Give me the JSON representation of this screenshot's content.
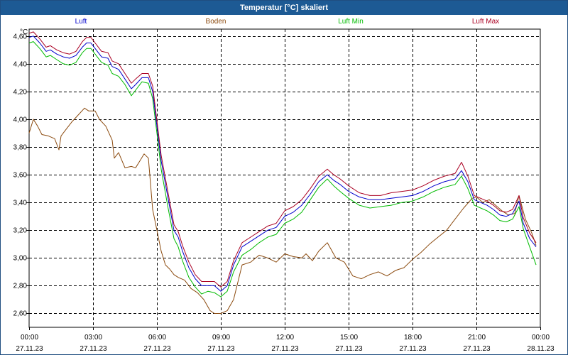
{
  "window": {
    "title": "Temperatur [°C] skaliert"
  },
  "chart_data": {
    "type": "line",
    "title": "Temperatur [°C] skaliert",
    "ylabel": "°C",
    "ylim": [
      2.5,
      4.65
    ],
    "xlim_hours": [
      0,
      24
    ],
    "grid": true,
    "legend": "top",
    "y_ticks": [
      "2,60",
      "2,80",
      "3,00",
      "3,20",
      "3,40",
      "3,60",
      "3,80",
      "4,00",
      "4,20",
      "4,40",
      "4,60"
    ],
    "x_ticks": [
      {
        "time": "00:00",
        "date": "27.11.23"
      },
      {
        "time": "03:00",
        "date": "27.11.23"
      },
      {
        "time": "06:00",
        "date": "27.11.23"
      },
      {
        "time": "09:00",
        "date": "27.11.23"
      },
      {
        "time": "12:00",
        "date": "27.11.23"
      },
      {
        "time": "15:00",
        "date": "27.11.23"
      },
      {
        "time": "18:00",
        "date": "27.11.23"
      },
      {
        "time": "21:00",
        "date": "27.11.23"
      },
      {
        "time": "00:00",
        "date": "28.11.23"
      }
    ],
    "series": [
      {
        "name": "Luft",
        "color": "#0000cc",
        "x": [
          0,
          0.2,
          0.5,
          0.8,
          1.0,
          1.3,
          1.6,
          1.9,
          2.2,
          2.5,
          2.7,
          2.9,
          3.1,
          3.4,
          3.7,
          3.9,
          4.2,
          4.5,
          4.8,
          5.0,
          5.3,
          5.6,
          5.8,
          6.0,
          6.2,
          6.5,
          6.8,
          7.0,
          7.2,
          7.5,
          7.8,
          8.1,
          8.4,
          8.7,
          9.0,
          9.3,
          9.6,
          10.0,
          10.4,
          10.8,
          11.2,
          11.6,
          12.0,
          12.4,
          12.8,
          13.2,
          13.6,
          14.0,
          14.3,
          14.6,
          15.0,
          15.5,
          16.0,
          16.5,
          17.0,
          17.5,
          18.0,
          18.5,
          19.0,
          19.5,
          20.0,
          20.3,
          20.6,
          20.9,
          21.2,
          21.5,
          21.8,
          22.1,
          22.4,
          22.7,
          23.0,
          23.2,
          23.5,
          23.8
        ],
        "values": [
          4.59,
          4.6,
          4.55,
          4.49,
          4.5,
          4.47,
          4.45,
          4.44,
          4.46,
          4.52,
          4.55,
          4.55,
          4.51,
          4.45,
          4.44,
          4.38,
          4.36,
          4.29,
          4.22,
          4.25,
          4.3,
          4.3,
          4.2,
          3.95,
          3.7,
          3.45,
          3.2,
          3.15,
          3.05,
          2.93,
          2.85,
          2.8,
          2.8,
          2.8,
          2.76,
          2.8,
          2.95,
          3.08,
          3.12,
          3.16,
          3.2,
          3.22,
          3.3,
          3.33,
          3.38,
          3.46,
          3.55,
          3.6,
          3.56,
          3.53,
          3.48,
          3.44,
          3.42,
          3.42,
          3.43,
          3.44,
          3.45,
          3.48,
          3.52,
          3.55,
          3.57,
          3.63,
          3.55,
          3.42,
          3.4,
          3.38,
          3.35,
          3.31,
          3.3,
          3.32,
          3.41,
          3.25,
          3.14,
          3.08
        ]
      },
      {
        "name": "Boden",
        "color": "#8b4a0e",
        "x": [
          0,
          0.2,
          0.4,
          0.6,
          0.9,
          1.2,
          1.4,
          1.5,
          1.7,
          2.0,
          2.3,
          2.6,
          2.8,
          3.1,
          3.3,
          3.6,
          3.9,
          4.0,
          4.2,
          4.5,
          4.8,
          5.0,
          5.2,
          5.4,
          5.6,
          5.8,
          6.0,
          6.2,
          6.4,
          6.6,
          6.8,
          7.0,
          7.3,
          7.6,
          7.9,
          8.2,
          8.5,
          8.7,
          9.0,
          9.3,
          9.6,
          10.0,
          10.4,
          10.8,
          11.2,
          11.6,
          12.0,
          12.4,
          12.8,
          13.0,
          13.3,
          13.6,
          14.0,
          14.4,
          14.8,
          15.2,
          15.6,
          16.0,
          16.4,
          16.8,
          17.2,
          17.6,
          18.0,
          18.4,
          18.8,
          19.2,
          19.6,
          20.0,
          20.4,
          20.8,
          21.0,
          21.3,
          21.6,
          21.9,
          22.2,
          22.5,
          22.8,
          23.0,
          23.3,
          23.6,
          23.8
        ],
        "values": [
          3.9,
          4.0,
          3.95,
          3.89,
          3.88,
          3.86,
          3.78,
          3.88,
          3.92,
          3.98,
          4.03,
          4.08,
          4.06,
          4.06,
          4.0,
          3.95,
          3.85,
          3.72,
          3.76,
          3.65,
          3.66,
          3.65,
          3.7,
          3.75,
          3.72,
          3.35,
          3.2,
          3.05,
          2.95,
          2.92,
          2.88,
          2.86,
          2.84,
          2.78,
          2.75,
          2.7,
          2.62,
          2.6,
          2.6,
          2.62,
          2.7,
          2.95,
          2.97,
          3.02,
          3.0,
          2.97,
          3.03,
          3.01,
          3.0,
          3.03,
          2.98,
          3.05,
          3.11,
          3.0,
          2.97,
          2.87,
          2.85,
          2.88,
          2.9,
          2.87,
          2.91,
          2.93,
          2.99,
          3.04,
          3.1,
          3.15,
          3.2,
          3.28,
          3.36,
          3.43,
          3.44,
          3.4,
          3.42,
          3.38,
          3.34,
          3.31,
          3.32,
          3.45,
          3.28,
          3.18,
          3.09
        ]
      },
      {
        "name": "Luft Min",
        "color": "#00bb00",
        "x": [
          0,
          0.2,
          0.5,
          0.8,
          1.0,
          1.3,
          1.6,
          1.9,
          2.2,
          2.5,
          2.7,
          2.9,
          3.1,
          3.4,
          3.7,
          3.9,
          4.2,
          4.5,
          4.8,
          5.0,
          5.3,
          5.6,
          5.8,
          6.0,
          6.2,
          6.5,
          6.8,
          7.0,
          7.2,
          7.5,
          7.8,
          8.1,
          8.4,
          8.7,
          9.0,
          9.3,
          9.6,
          10.0,
          10.4,
          10.8,
          11.2,
          11.6,
          12.0,
          12.4,
          12.8,
          13.2,
          13.6,
          14.0,
          14.3,
          14.6,
          15.0,
          15.5,
          16.0,
          16.5,
          17.0,
          17.5,
          18.0,
          18.5,
          19.0,
          19.5,
          20.0,
          20.3,
          20.6,
          20.9,
          21.2,
          21.5,
          21.8,
          22.1,
          22.4,
          22.7,
          23.0,
          23.2,
          23.5,
          23.8
        ],
        "values": [
          4.55,
          4.56,
          4.51,
          4.45,
          4.46,
          4.43,
          4.4,
          4.39,
          4.41,
          4.48,
          4.51,
          4.51,
          4.47,
          4.41,
          4.39,
          4.33,
          4.31,
          4.25,
          4.17,
          4.21,
          4.27,
          4.26,
          4.15,
          3.9,
          3.64,
          3.38,
          3.14,
          3.08,
          2.98,
          2.86,
          2.79,
          2.74,
          2.76,
          2.75,
          2.72,
          2.76,
          2.9,
          3.02,
          3.06,
          3.11,
          3.15,
          3.17,
          3.25,
          3.28,
          3.33,
          3.42,
          3.51,
          3.57,
          3.52,
          3.48,
          3.43,
          3.38,
          3.36,
          3.37,
          3.38,
          3.4,
          3.41,
          3.44,
          3.48,
          3.51,
          3.53,
          3.59,
          3.5,
          3.38,
          3.36,
          3.34,
          3.31,
          3.27,
          3.26,
          3.28,
          3.37,
          3.21,
          3.08,
          2.95
        ]
      },
      {
        "name": "Luft Max",
        "color": "#aa0022",
        "x": [
          0,
          0.2,
          0.5,
          0.8,
          1.0,
          1.3,
          1.6,
          1.9,
          2.2,
          2.5,
          2.7,
          2.9,
          3.1,
          3.4,
          3.7,
          3.9,
          4.2,
          4.5,
          4.8,
          5.0,
          5.3,
          5.6,
          5.8,
          6.0,
          6.2,
          6.5,
          6.8,
          7.0,
          7.2,
          7.5,
          7.8,
          8.1,
          8.4,
          8.7,
          9.0,
          9.3,
          9.6,
          10.0,
          10.4,
          10.8,
          11.2,
          11.6,
          12.0,
          12.4,
          12.8,
          13.2,
          13.6,
          14.0,
          14.3,
          14.6,
          15.0,
          15.5,
          16.0,
          16.5,
          17.0,
          17.5,
          18.0,
          18.5,
          19.0,
          19.5,
          20.0,
          20.3,
          20.6,
          20.9,
          21.2,
          21.5,
          21.8,
          22.1,
          22.4,
          22.7,
          23.0,
          23.2,
          23.5,
          23.8
        ],
        "values": [
          4.62,
          4.63,
          4.58,
          4.52,
          4.53,
          4.5,
          4.48,
          4.47,
          4.49,
          4.56,
          4.59,
          4.59,
          4.55,
          4.49,
          4.48,
          4.42,
          4.4,
          4.33,
          4.26,
          4.29,
          4.33,
          4.33,
          4.24,
          3.99,
          3.74,
          3.49,
          3.24,
          3.19,
          3.09,
          2.97,
          2.88,
          2.83,
          2.83,
          2.83,
          2.79,
          2.83,
          2.98,
          3.11,
          3.15,
          3.19,
          3.23,
          3.25,
          3.34,
          3.37,
          3.42,
          3.5,
          3.59,
          3.64,
          3.6,
          3.57,
          3.52,
          3.47,
          3.45,
          3.45,
          3.47,
          3.48,
          3.49,
          3.52,
          3.56,
          3.59,
          3.61,
          3.69,
          3.59,
          3.45,
          3.43,
          3.41,
          3.38,
          3.34,
          3.33,
          3.35,
          3.45,
          3.29,
          3.18,
          3.11
        ]
      }
    ]
  }
}
